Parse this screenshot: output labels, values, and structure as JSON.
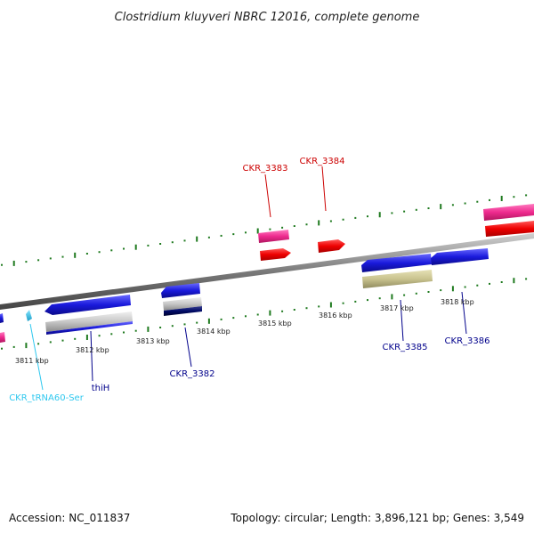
{
  "title": "Clostridium kluyveri NBRC 12016, complete genome",
  "footer": {
    "accession": "Accession: NC_011837",
    "summary": "Topology: circular; Length: 3,896,121 bp; Genes: 3,549"
  },
  "kbp_labels": [
    "3811 kbp",
    "3812 kbp",
    "3813 kbp",
    "3814 kbp",
    "3815 kbp",
    "3816 kbp",
    "3817 kbp",
    "3818 kbp"
  ],
  "gene_labels": {
    "ckr_3383": "CKR_3383",
    "ckr_3384": "CKR_3384",
    "ckr_3385": "CKR_3385",
    "ckr_3386": "CKR_3386",
    "ckr_3382": "CKR_3382",
    "thih": "thiH",
    "trna": "CKR_tRNA60-Ser"
  },
  "colors": {
    "forward_cds": "#ee0000",
    "forward_pink": "#ee2a8e",
    "reverse_cds": "#1a1adc",
    "reverse_gray": "#c6c6c6",
    "reverse_olive": "#c9c38f",
    "reverse_navy": "#000a66",
    "trna": "#2fc8ef",
    "backbone": "#7a7a7a",
    "tick": "#1f7a1f",
    "label_forward": "#cc0000",
    "label_reverse": "#00008b",
    "label_trna": "#2fc8ef"
  }
}
